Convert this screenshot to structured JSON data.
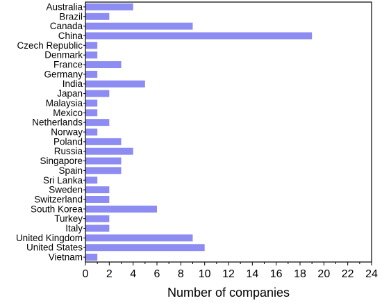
{
  "chart_data": {
    "type": "bar",
    "orientation": "horizontal",
    "title": "",
    "xlabel": "Number of companies",
    "ylabel": "",
    "xlim": [
      0,
      24
    ],
    "xticks": [
      0,
      2,
      4,
      6,
      8,
      10,
      12,
      14,
      16,
      18,
      20,
      22,
      24
    ],
    "grid": false,
    "legend": "none",
    "bar_color": "#8c8cf2",
    "categories": [
      "Australia",
      "Brazil",
      "Canada",
      "China",
      "Czech Republic",
      "Denmark",
      "France",
      "Germany",
      "India",
      "Japan",
      "Malaysia",
      "Mexico",
      "Netherlands",
      "Norway",
      "Poland",
      "Russia",
      "Singapore",
      "Spain",
      "Sri Lanka",
      "Sweden",
      "Switzerland",
      "South Korea",
      "Turkey",
      "Italy",
      "United Kingdom",
      "United States",
      "Vietnam"
    ],
    "values": [
      4,
      2,
      9,
      19,
      1,
      1,
      3,
      1,
      5,
      2,
      1,
      1,
      2,
      1,
      3,
      4,
      3,
      3,
      1,
      2,
      2,
      6,
      2,
      2,
      9,
      10,
      1
    ]
  }
}
